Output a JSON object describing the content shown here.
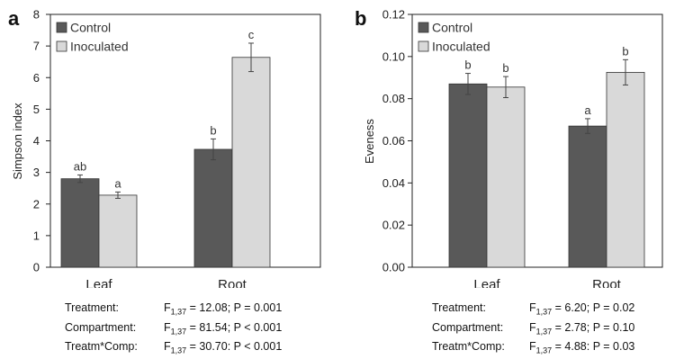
{
  "chart_data": [
    {
      "panel_label": "a",
      "type": "bar",
      "ylabel": "Simpson index",
      "ylim": [
        0,
        8
      ],
      "yticks": [
        "0",
        "1",
        "2",
        "3",
        "4",
        "5",
        "6",
        "7",
        "8"
      ],
      "categories": [
        "Leaf",
        "Root"
      ],
      "series": [
        {
          "name": "Control",
          "color": "#595959",
          "values": [
            2.8,
            3.73
          ],
          "errors": [
            0.12,
            0.33
          ],
          "labels": [
            "ab",
            "b"
          ]
        },
        {
          "name": "Inoculated",
          "color": "#d9d9d9",
          "values": [
            2.28,
            6.64
          ],
          "errors": [
            0.1,
            0.45
          ],
          "labels": [
            "a",
            "c"
          ]
        }
      ],
      "legend_position": "top-left",
      "grid": false,
      "stats": [
        {
          "label": "Treatment:",
          "f_sub": "1,37",
          "text": " = 12.08; P = 0.001"
        },
        {
          "label": "Compartment:",
          "f_sub": "1,37",
          "text": " = 81.54; P < 0.001"
        },
        {
          "label": "Treatm*Comp:",
          "f_sub": "1,37",
          "text": " = 30.70: P < 0.001"
        }
      ]
    },
    {
      "panel_label": "b",
      "type": "bar",
      "ylabel": "Eveness",
      "ylim": [
        0,
        0.12
      ],
      "yticks": [
        "0.00",
        "0.02",
        "0.04",
        "0.06",
        "0.08",
        "0.10",
        "0.12"
      ],
      "categories": [
        "Leaf",
        "Root"
      ],
      "series": [
        {
          "name": "Control",
          "color": "#595959",
          "values": [
            0.087,
            0.067
          ],
          "errors": [
            0.005,
            0.0035
          ],
          "labels": [
            "b",
            "a"
          ]
        },
        {
          "name": "Inoculated",
          "color": "#d9d9d9",
          "values": [
            0.0855,
            0.0925
          ],
          "errors": [
            0.005,
            0.006
          ],
          "labels": [
            "b",
            "b"
          ]
        }
      ],
      "legend_position": "top-left",
      "grid": false,
      "stats": [
        {
          "label": "Treatment:",
          "f_sub": "1,37",
          "text": " =  6.20; P = 0.02"
        },
        {
          "label": "Compartment:",
          "f_sub": "1,37",
          "text": " = 2.78; P = 0.10"
        },
        {
          "label": "Treatm*Comp:",
          "f_sub": "1,37",
          "text": " = 4.88: P = 0.03"
        }
      ]
    }
  ]
}
